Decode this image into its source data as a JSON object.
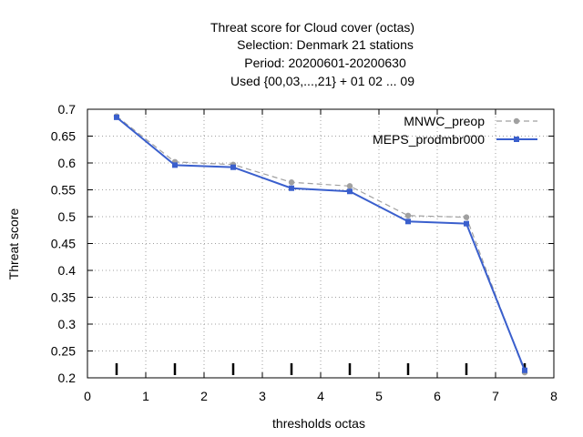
{
  "chart_data": {
    "type": "line",
    "title_lines": [
      "Threat score  for Cloud cover (octas)",
      "Selection: Denmark     21 stations",
      "Period: 20200601-20200630",
      "Used {00,03,...,21} + 01 02 ... 09"
    ],
    "xlabel": "thresholds octas",
    "ylabel": "Threat score",
    "xlim": [
      0,
      8
    ],
    "ylim": [
      0.2,
      0.7
    ],
    "xticks": [
      "0",
      "1",
      "2",
      "3",
      "4",
      "5",
      "6",
      "7",
      "8"
    ],
    "yticks": [
      "0.2",
      "0.25",
      "0.3",
      "0.35",
      "0.4",
      "0.45",
      "0.5",
      "0.55",
      "0.6",
      "0.65",
      "0.7"
    ],
    "grid": true,
    "legend_position": "top-right",
    "x": [
      0.5,
      1.5,
      2.5,
      3.5,
      4.5,
      5.5,
      6.5,
      7.5
    ],
    "series": [
      {
        "name": "MNWC_preop",
        "values": [
          0.687,
          0.602,
          0.597,
          0.564,
          0.557,
          0.502,
          0.499,
          0.21
        ],
        "color": "#a0a0a0",
        "style": "dashed"
      },
      {
        "name": "MEPS_prodmbr000",
        "values": [
          0.685,
          0.596,
          0.592,
          0.553,
          0.547,
          0.491,
          0.487,
          0.214
        ],
        "color": "#3a5fcd",
        "style": "solid"
      }
    ],
    "threshold_marks": [
      0.5,
      1.5,
      2.5,
      3.5,
      4.5,
      5.5,
      6.5,
      7.5
    ]
  }
}
